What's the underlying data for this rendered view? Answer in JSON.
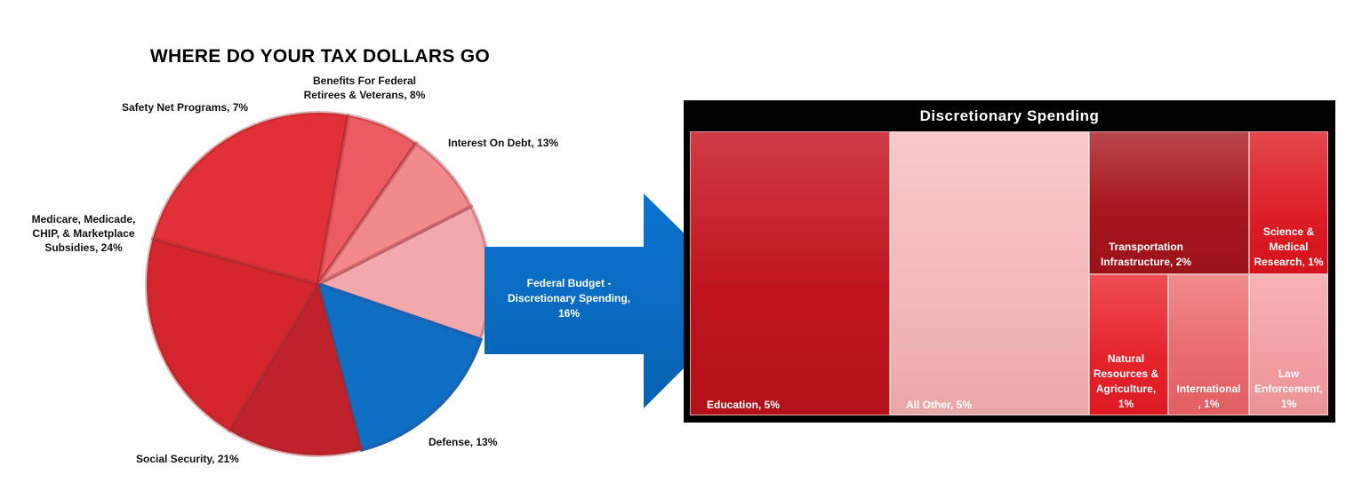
{
  "chart_data": [
    {
      "type": "pie",
      "title": "WHERE DO YOUR TAX DOLLARS GO",
      "slices": [
        {
          "label": "Interest On Debt, 13%",
          "value": 13,
          "color": "#f2a9ab"
        },
        {
          "label": "Federal Budget - Discretionary Spending, 16%",
          "value": 16,
          "color": "#0f6fc4"
        },
        {
          "label": "Defense, 13%",
          "value": 13,
          "color": "#c0222b"
        },
        {
          "label": "Social Security, 21%",
          "value": 21,
          "color": "#d4252d"
        },
        {
          "label": "Medicare, Medicade, CHIP, & Marketplace Subsidies, 24%",
          "value": 24,
          "color": "#e13037"
        },
        {
          "label": "Safety Net Programs, 7%",
          "value": 7,
          "color": "#ec5b60"
        },
        {
          "label": "Benefits For Federal Retirees & Veterans, 8%",
          "value": 8,
          "color": "#f08a8c"
        }
      ]
    },
    {
      "type": "treemap",
      "title": "Discretionary Spending",
      "items": [
        {
          "label": "Education, 5%",
          "value": 5,
          "color": "#c4161f"
        },
        {
          "label": "All Other, 5%",
          "value": 5,
          "color": "#f4bcbc"
        },
        {
          "label": "Transportation Infrastructure, 2%",
          "value": 2,
          "color": "#ac1a22"
        },
        {
          "label": "Science & Medical Research, 1%",
          "value": 1,
          "color": "#e2222a"
        },
        {
          "label": "Natural Resources & Agriculture, 1%",
          "value": 1,
          "color": "#e8262e"
        },
        {
          "label": "International , 1%",
          "value": 1,
          "color": "#ee7478"
        },
        {
          "label": "Law Enforcement, 1%",
          "value": 1,
          "color": "#f5aaac"
        }
      ]
    }
  ],
  "labels": {
    "pie_title": "WHERE DO YOUR TAX DOLLARS GO",
    "safety_net": "Safety Net Programs, 7%",
    "benefits_1": "Benefits For Federal",
    "benefits_2": "Retirees & Veterans, 8%",
    "interest": "Interest On Debt, 13%",
    "medicare_1": "Medicare, Medicade,",
    "medicare_2": "CHIP, & Marketplace",
    "medicare_3": "Subsidies, 24%",
    "social_security": "Social Security, 21%",
    "defense": "Defense, 13%",
    "arrow_1": "Federal Budget -",
    "arrow_2": "Discretionary Spending,",
    "arrow_3": "16%",
    "treemap_title": "Discretionary Spending",
    "education": "Education, 5%",
    "all_other": "All Other, 5%",
    "transport_1": "Transportation",
    "transport_2": "Infrastructure, 2%",
    "science_1": "Science &",
    "science_2": "Medical",
    "science_3": "Research, 1%",
    "natural_1": "Natural",
    "natural_2": "Resources &",
    "natural_3": "Agriculture,",
    "natural_4": "1%",
    "international_1": "International",
    "international_2": ", 1%",
    "law_1": "Law",
    "law_2": "Enforcement,",
    "law_3": "1%"
  }
}
